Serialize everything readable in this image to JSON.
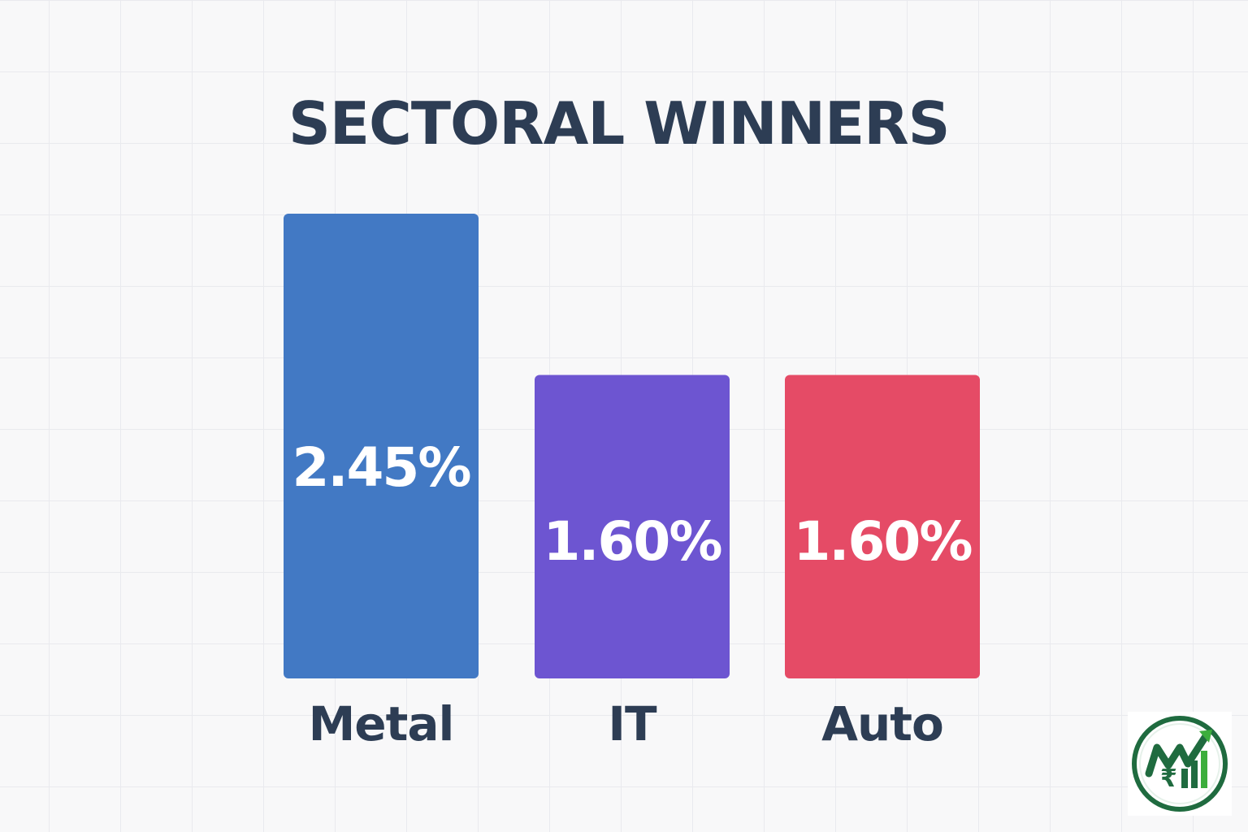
{
  "chart_data": {
    "type": "bar",
    "title": "SECTORAL WINNERS",
    "categories": [
      "Metal",
      "IT",
      "Auto"
    ],
    "values": [
      2.45,
      1.6,
      1.6
    ],
    "value_labels": [
      "2.45%",
      "1.60%",
      "1.60%"
    ],
    "colors": [
      "#4279c4",
      "#6d55d1",
      "#e54b66"
    ],
    "ylim": [
      0,
      2.45
    ],
    "grid": false,
    "legend": "none"
  },
  "logo": {
    "icon": "rupee-growth-chart-logo",
    "colors": [
      "#1f6b3f",
      "#3cae3c"
    ]
  }
}
